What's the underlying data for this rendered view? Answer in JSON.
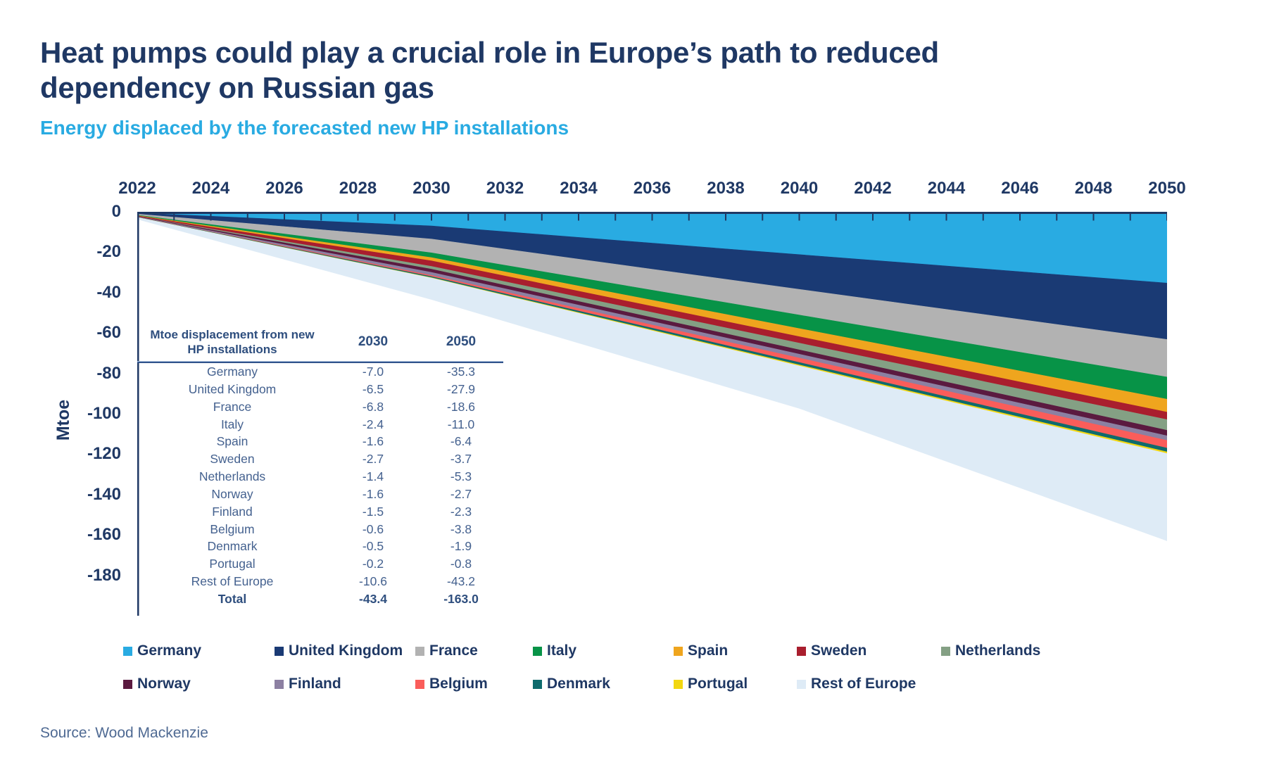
{
  "page": {
    "title_lines": [
      "Heat pumps could play a crucial role in Europe’s path to reduced",
      "dependency on Russian gas"
    ],
    "subtitle": "Energy displaced by the forecasted new HP installations",
    "source": "Source: Wood Mackenzie",
    "colors": {
      "title_navy": "#1F3864",
      "subtitle_blue": "#29ABE2",
      "axis": "#1F3864",
      "table_text": "#44618F",
      "source_text": "#4F6A93"
    }
  },
  "chart_data": {
    "type": "area",
    "stacked": true,
    "title": "Energy displaced by the forecasted new HP installations",
    "xlabel": "",
    "ylabel": "Mtoe",
    "xlim": [
      2022,
      2050
    ],
    "ylim": [
      -200,
      0
    ],
    "grid": false,
    "legend_position": "bottom",
    "x_tick_labels": [
      2022,
      2024,
      2026,
      2028,
      2030,
      2032,
      2034,
      2036,
      2038,
      2040,
      2042,
      2044,
      2046,
      2048,
      2050
    ],
    "x_minor_tick_every_years": 1,
    "y_tick_labels": [
      0,
      -20,
      -40,
      -60,
      -80,
      -100,
      -120,
      -140,
      -160,
      -180
    ],
    "anchor_years": [
      2022,
      2030,
      2040,
      2050
    ],
    "series": [
      {
        "name": "Germany",
        "color": "#29ABE2",
        "values": [
          -0.6,
          -7.0,
          -21.2,
          -35.3
        ]
      },
      {
        "name": "United Kingdom",
        "color": "#1A3A74",
        "values": [
          -0.5,
          -6.5,
          -17.2,
          -27.9
        ]
      },
      {
        "name": "France",
        "color": "#B2B2B2",
        "values": [
          -0.55,
          -6.8,
          -12.7,
          -18.6
        ]
      },
      {
        "name": "Italy",
        "color": "#079347",
        "values": [
          -0.2,
          -2.4,
          -6.7,
          -11.0
        ]
      },
      {
        "name": "Spain",
        "color": "#EFA51E",
        "values": [
          -0.15,
          -1.6,
          -4.0,
          -6.4
        ]
      },
      {
        "name": "Sweden",
        "color": "#A91E2E",
        "values": [
          -0.25,
          -2.7,
          -3.2,
          -3.7
        ]
      },
      {
        "name": "Netherlands",
        "color": "#84A084",
        "values": [
          -0.1,
          -1.4,
          -3.35,
          -5.3
        ]
      },
      {
        "name": "Norway",
        "color": "#5B1A40",
        "values": [
          -0.15,
          -1.6,
          -2.15,
          -2.7
        ]
      },
      {
        "name": "Finland",
        "color": "#8C80A2",
        "values": [
          -0.15,
          -1.5,
          -1.9,
          -2.3
        ]
      },
      {
        "name": "Belgium",
        "color": "#FA5D5A",
        "values": [
          -0.05,
          -0.6,
          -2.2,
          -3.8
        ]
      },
      {
        "name": "Denmark",
        "color": "#0E6B6D",
        "values": [
          -0.05,
          -0.5,
          -1.2,
          -1.9
        ]
      },
      {
        "name": "Portugal",
        "color": "#F2D711",
        "values": [
          -0.02,
          -0.2,
          -0.5,
          -0.8
        ]
      },
      {
        "name": "Rest of Europe",
        "color": "#DEEBF6",
        "values": [
          -0.9,
          -10.6,
          -21.0,
          -43.2
        ]
      }
    ],
    "totals": {
      "y2030": -43.4,
      "y2050": -163.0
    }
  },
  "table": {
    "header_line1": "Mtoe displacement from new",
    "header_line2": "HP installations",
    "col_2030": "2030",
    "col_2050": "2050",
    "rows": [
      {
        "label": "Germany",
        "y2030": "-7.0",
        "y2050": "-35.3",
        "bold": false
      },
      {
        "label": "United Kingdom",
        "y2030": "-6.5",
        "y2050": "-27.9",
        "bold": false
      },
      {
        "label": "France",
        "y2030": "-6.8",
        "y2050": "-18.6",
        "bold": false
      },
      {
        "label": "Italy",
        "y2030": "-2.4",
        "y2050": "-11.0",
        "bold": false
      },
      {
        "label": "Spain",
        "y2030": "-1.6",
        "y2050": "-6.4",
        "bold": false
      },
      {
        "label": "Sweden",
        "y2030": "-2.7",
        "y2050": "-3.7",
        "bold": false
      },
      {
        "label": "Netherlands",
        "y2030": "-1.4",
        "y2050": "-5.3",
        "bold": false
      },
      {
        "label": "Norway",
        "y2030": "-1.6",
        "y2050": "-2.7",
        "bold": false
      },
      {
        "label": "Finland",
        "y2030": "-1.5",
        "y2050": "-2.3",
        "bold": false
      },
      {
        "label": "Belgium",
        "y2030": "-0.6",
        "y2050": "-3.8",
        "bold": false
      },
      {
        "label": "Denmark",
        "y2030": "-0.5",
        "y2050": "-1.9",
        "bold": false
      },
      {
        "label": "Portugal",
        "y2030": "-0.2",
        "y2050": "-0.8",
        "bold": false
      },
      {
        "label": "Rest of Europe",
        "y2030": "-10.6",
        "y2050": "-43.2",
        "bold": false
      },
      {
        "label": "Total",
        "y2030": "-43.4",
        "y2050": "-163.0",
        "bold": true
      }
    ]
  },
  "legend": {
    "items_in_first_row": 7
  }
}
